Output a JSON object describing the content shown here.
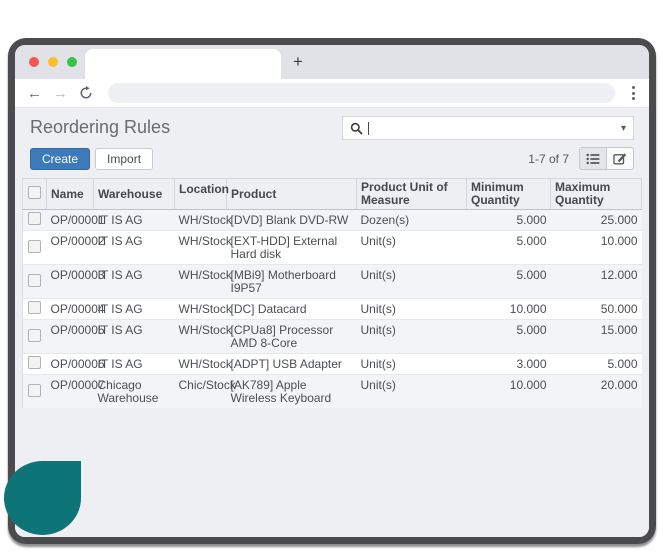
{
  "browser": {
    "new_tab_label": "+",
    "tab_title": "",
    "url_value": ""
  },
  "app": {
    "title": "Reordering Rules",
    "search_value": "",
    "create_label": "Create",
    "import_label": "Import",
    "pager": "1-7 of 7",
    "table": {
      "headers": {
        "name": "Name",
        "warehouse": "Warehouse",
        "location": "Location",
        "product": "Product",
        "uom": "Product Unit of Measure",
        "min": "Minimum Quantity",
        "max": "Maximum Quantity"
      },
      "rows": [
        {
          "name": "OP/00001",
          "warehouse": "IT IS AG",
          "location": "WH/Stock",
          "product": "[DVD] Blank DVD-RW",
          "uom": "Dozen(s)",
          "min": "5.000",
          "max": "25.000"
        },
        {
          "name": "OP/00002",
          "warehouse": "IT IS AG",
          "location": "WH/Stock",
          "product": "[EXT-HDD] External Hard disk",
          "uom": "Unit(s)",
          "min": "5.000",
          "max": "10.000"
        },
        {
          "name": "OP/00003",
          "warehouse": "IT IS AG",
          "location": "WH/Stock",
          "product": "[MBi9] Motherboard I9P57",
          "uom": "Unit(s)",
          "min": "5.000",
          "max": "12.000"
        },
        {
          "name": "OP/00004",
          "warehouse": "IT IS AG",
          "location": "WH/Stock",
          "product": "[DC] Datacard",
          "uom": "Unit(s)",
          "min": "10.000",
          "max": "50.000"
        },
        {
          "name": "OP/00005",
          "warehouse": "IT IS AG",
          "location": "WH/Stock",
          "product": "[CPUa8] Processor AMD 8-Core",
          "uom": "Unit(s)",
          "min": "5.000",
          "max": "15.000"
        },
        {
          "name": "OP/00006",
          "warehouse": "IT IS AG",
          "location": "WH/Stock",
          "product": "[ADPT] USB Adapter",
          "uom": "Unit(s)",
          "min": "3.000",
          "max": "5.000"
        },
        {
          "name": "OP/00007",
          "warehouse": "Chicago Warehouse",
          "location": "Chic/Stock",
          "product": "[AK789] Apple Wireless Keyboard",
          "uom": "Unit(s)",
          "min": "10.000",
          "max": "20.000"
        }
      ]
    }
  },
  "colors": {
    "accent_blue": "#3d7ab9",
    "teal_blob": "#0d7478",
    "traffic_red": "#f2564f",
    "traffic_yellow": "#fcbe2d",
    "traffic_green": "#35c245",
    "frame_gray": "#4b4b4d",
    "content_bg": "#edeff3"
  }
}
